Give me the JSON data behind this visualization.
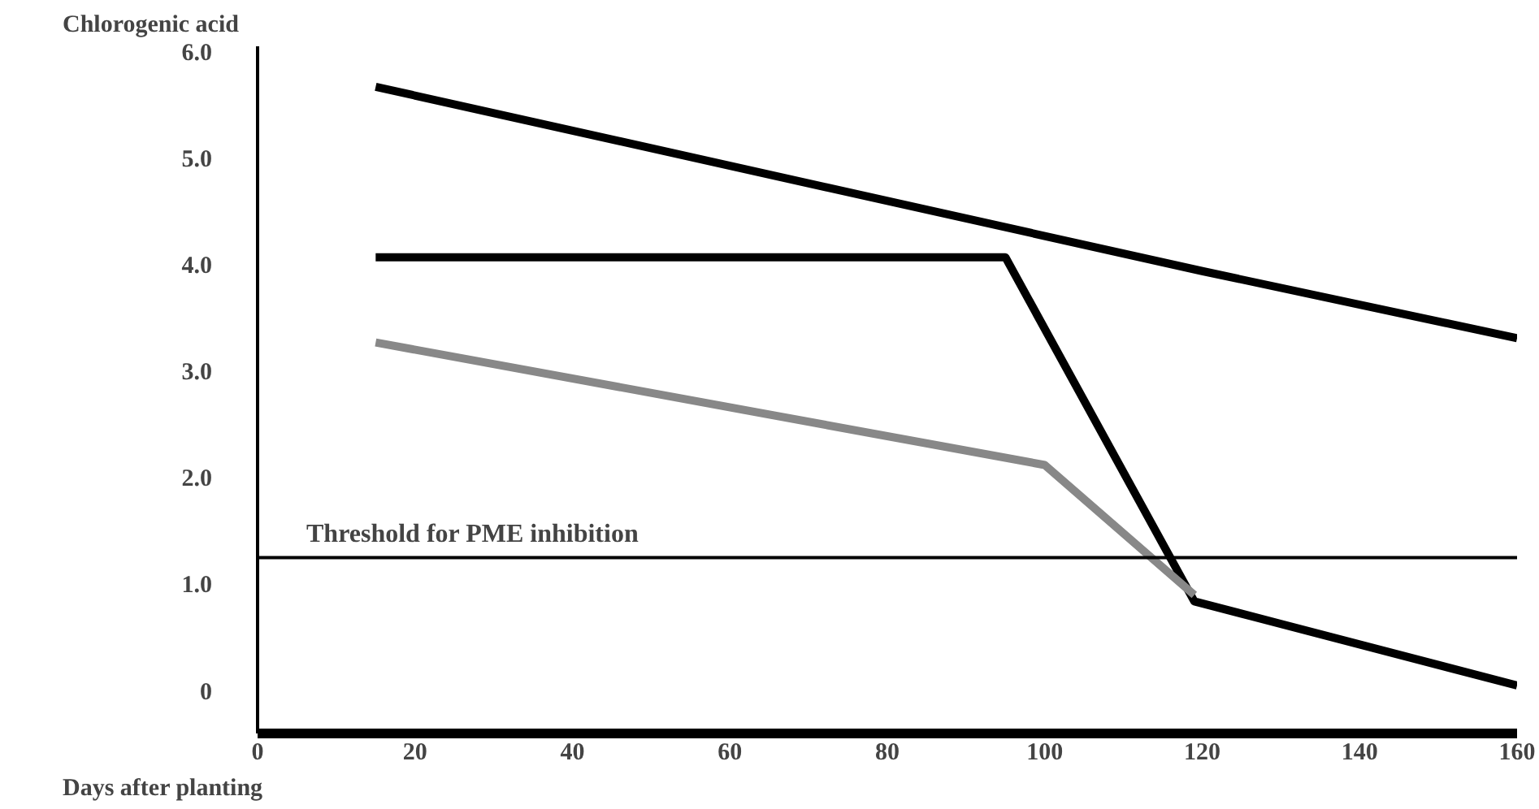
{
  "chart_data": {
    "type": "line",
    "ylabel": "Chlorogenic acid",
    "xlabel": "Days after planting",
    "xlim": [
      0,
      160
    ],
    "xticks": [
      0,
      20,
      40,
      60,
      80,
      100,
      120,
      140,
      160
    ],
    "ylim": [
      -0.4,
      6.05
    ],
    "yticks": [
      {
        "value": 0,
        "label": "0"
      },
      {
        "value": 1,
        "label": "1.0"
      },
      {
        "value": 2,
        "label": "2.0"
      },
      {
        "value": 3,
        "label": "3.0"
      },
      {
        "value": 4,
        "label": "4.0"
      },
      {
        "value": 5,
        "label": "5.0"
      },
      {
        "value": 6,
        "label": "6.0"
      }
    ],
    "series": [
      {
        "color": "#000000",
        "x": [
          15,
          120,
          160
        ],
        "values": [
          5.67,
          3.94,
          3.31
        ]
      },
      {
        "color": "#000000",
        "x": [
          15,
          95,
          119,
          160
        ],
        "values": [
          4.07,
          4.07,
          0.84,
          0.05
        ]
      },
      {
        "color": "#888888",
        "x": [
          15,
          100,
          119
        ],
        "values": [
          3.27,
          2.12,
          0.9
        ]
      }
    ],
    "ref_lines": [
      {
        "axis": "y",
        "value": 1.25,
        "label": "Threshold for PME inhibition",
        "color": "#000000"
      }
    ],
    "grid": false,
    "marker": "none",
    "line_style": "solid"
  }
}
